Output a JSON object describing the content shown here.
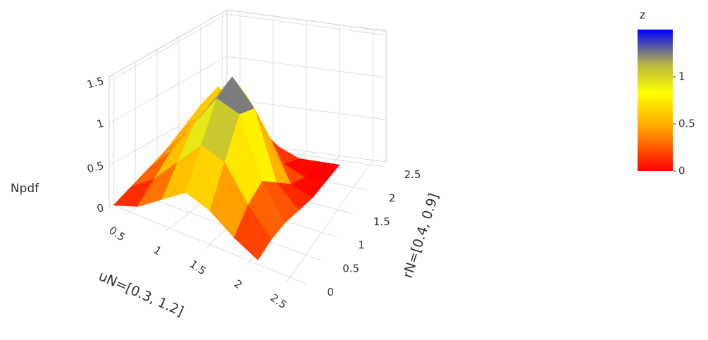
{
  "chart_data": {
    "type": "surface",
    "x_title": "uN=[0.3, 1.2]",
    "y_title": "rN=[0.4, 0.9]",
    "z_title": "Npdf",
    "x": [
      0.3,
      0.6,
      0.9,
      1.2,
      1.5,
      1.8,
      2.1
    ],
    "y": [
      0,
      0.4,
      0.8,
      1.2,
      1.6,
      2.0,
      2.4
    ],
    "z": [
      [
        0,
        0.1,
        0.3,
        0.5,
        0.4,
        0.2,
        0.05
      ],
      [
        0.1,
        0.3,
        0.6,
        0.9,
        0.8,
        0.4,
        0.1
      ],
      [
        0.2,
        0.5,
        0.9,
        1.3,
        1.2,
        0.5,
        0.1
      ],
      [
        0.3,
        0.6,
        1.0,
        1.4,
        1.1,
        0.3,
        0.05
      ],
      [
        0.45,
        0.7,
        0.9,
        1.0,
        0.6,
        0.1,
        0
      ],
      [
        0.6,
        0.7,
        0.6,
        0.4,
        0.1,
        0,
        0
      ],
      [
        0.7,
        0.5,
        0.3,
        0.1,
        0,
        0,
        0
      ]
    ],
    "xlim": [
      0.3,
      2.7
    ],
    "ylim": [
      -0.1,
      2.6
    ],
    "zlim": [
      0,
      1.55
    ],
    "xticks": [
      0.5,
      1,
      1.5,
      2,
      2.5
    ],
    "yticks": [
      0,
      0.5,
      1,
      1.5,
      2,
      2.5
    ],
    "zticks": [
      0,
      0.5,
      1,
      1.5
    ],
    "colorbar": {
      "title": "z",
      "lim": [
        0,
        1.5
      ],
      "ticks": [
        0,
        0.5,
        1
      ]
    },
    "colorscale": [
      [
        0,
        "#ff0000"
      ],
      [
        0.3,
        "#ffa000"
      ],
      [
        0.55,
        "#ffff00"
      ],
      [
        0.75,
        "#b8b840"
      ],
      [
        1,
        "#0000ff"
      ]
    ],
    "grid": true
  }
}
